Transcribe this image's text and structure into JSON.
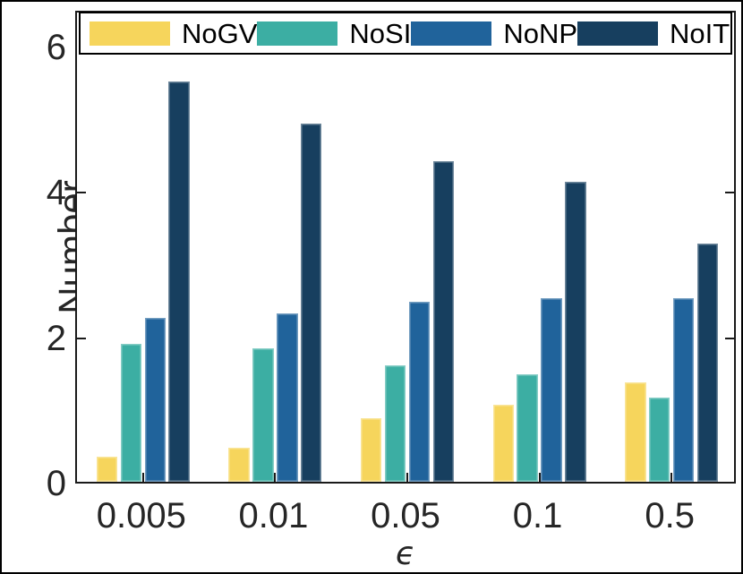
{
  "chart_data": {
    "type": "bar",
    "title": "",
    "xlabel": "ϵ",
    "ylabel": "Number",
    "categories": [
      "0.005",
      "0.01",
      "0.05",
      "0.1",
      "0.5"
    ],
    "series": [
      {
        "name": "NoGV",
        "color": "#F6D55C",
        "values": [
          0.35,
          0.47,
          0.88,
          1.06,
          1.37
        ]
      },
      {
        "name": "NoSI",
        "color": "#3CAEA3",
        "values": [
          1.9,
          1.84,
          1.6,
          1.48,
          1.16
        ]
      },
      {
        "name": "NoNP",
        "color": "#20639B",
        "values": [
          2.25,
          2.31,
          2.47,
          2.53,
          2.53
        ]
      },
      {
        "name": "NoIT",
        "color": "#173F5F",
        "values": [
          5.5,
          4.92,
          4.41,
          4.13,
          3.27
        ]
      }
    ],
    "ylim": [
      0,
      6.5
    ],
    "yticks": [
      0,
      2,
      4,
      6
    ],
    "grid": false,
    "legend_position": "top-inside-horizontal",
    "axis_color": "#1a1a1a",
    "background_color": "#ffffff"
  }
}
